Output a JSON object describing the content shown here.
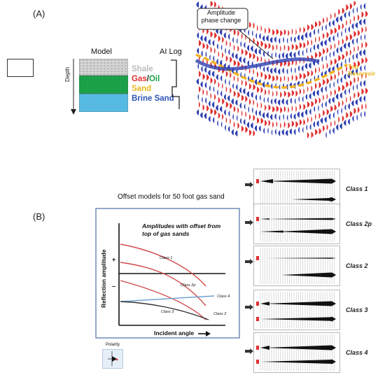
{
  "panel_a": {
    "label": "(A)",
    "model_title": "Model",
    "ai_log_title": "AI Log",
    "depth_label": "Depth",
    "layers": [
      {
        "name": "Shale",
        "color": "#c8c8c8"
      },
      {
        "name_part1": "Gas",
        "name_sep": "/",
        "name_part2": "Oil",
        "color": "#1ca34a"
      },
      {
        "name": "Sand",
        "color": "#e8b81e"
      },
      {
        "name": "Brine Sand",
        "color": "#2d55b8"
      }
    ],
    "callout": "Amplitude\nphase  change",
    "top_reservoir": "Top\nReservoir",
    "colors": {
      "red": "#e03030",
      "blue": "#2d3fb0",
      "yellow": "#f2b21e",
      "green": "#1ca34a",
      "cyan": "#5bc0e8"
    }
  },
  "panel_b": {
    "label": "(B)",
    "title": "Offset models for 50 foot gas sand",
    "inner_title": "Amplitudes with offset from\ntop of gas sands",
    "y_label": "Reflection amplitude",
    "x_label": "Incident angle",
    "plus": "+",
    "minus": "–",
    "curves": [
      "Class 1",
      "Class 2p",
      "Class 2",
      "Class 3",
      "Class 4"
    ],
    "polarity_label": "Polarity",
    "gathers": [
      "Class 1",
      "Class 2p",
      "Class 2",
      "Class 3",
      "Class 4"
    ]
  }
}
